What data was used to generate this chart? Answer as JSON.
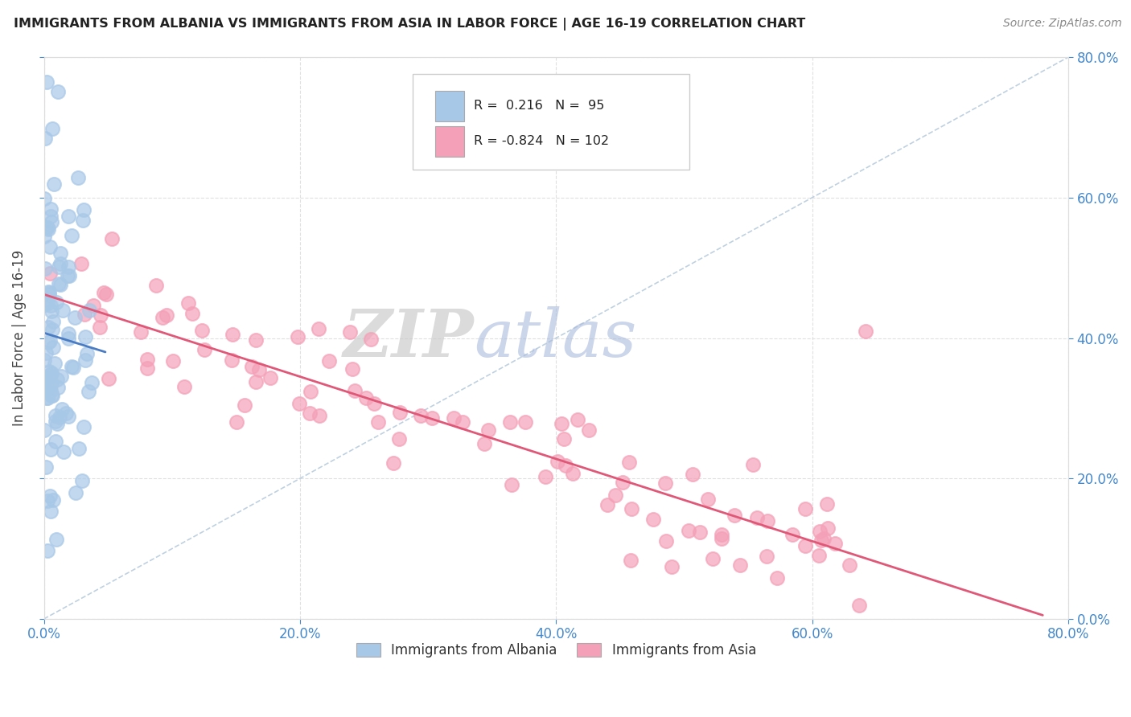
{
  "title": "IMMIGRANTS FROM ALBANIA VS IMMIGRANTS FROM ASIA IN LABOR FORCE | AGE 16-19 CORRELATION CHART",
  "source": "Source: ZipAtlas.com",
  "ylabel": "In Labor Force | Age 16-19",
  "r_albania": 0.216,
  "n_albania": 95,
  "r_asia": -0.824,
  "n_asia": 102,
  "xlim": [
    0.0,
    0.8
  ],
  "ylim": [
    0.0,
    0.8
  ],
  "albania_color": "#a8c8e8",
  "asia_color": "#f4a0b8",
  "albania_trend_color": "#4a7cc4",
  "asia_trend_color": "#e05878",
  "legend_labels": [
    "Immigrants from Albania",
    "Immigrants from Asia"
  ],
  "background_color": "#ffffff",
  "grid_color": "#e0e0e0",
  "tick_color": "#4488cc",
  "title_color": "#222222",
  "source_color": "#888888",
  "ylabel_color": "#444444",
  "xticks": [
    0.0,
    0.2,
    0.4,
    0.6,
    0.8
  ],
  "yticks": [
    0.0,
    0.2,
    0.4,
    0.6,
    0.8
  ],
  "xtick_labels": [
    "0.0%",
    "20.0%",
    "40.0%",
    "60.0%",
    "80.0%"
  ],
  "ytick_labels": [
    "0.0%",
    "20.0%",
    "40.0%",
    "60.0%",
    "80.0%"
  ]
}
